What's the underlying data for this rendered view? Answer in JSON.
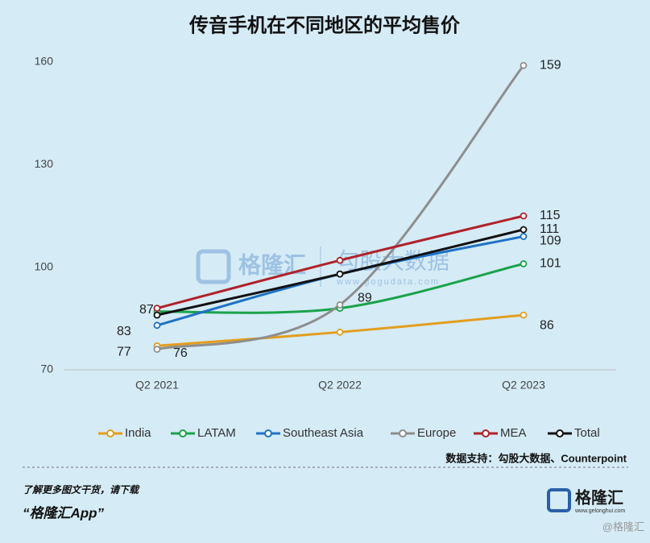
{
  "chart_data": {
    "type": "line",
    "title": "传音手机在不同地区的平均售价",
    "categories": [
      "Q2 2021",
      "Q2 2022",
      "Q2 2023"
    ],
    "series": [
      {
        "name": "India",
        "color": "#e39e1e",
        "values": [
          77,
          81,
          86
        ]
      },
      {
        "name": "LATAM",
        "color": "#1aa34a",
        "values": [
          87,
          88,
          101
        ]
      },
      {
        "name": "Southeast Asia",
        "color": "#1f72c4",
        "values": [
          83,
          98,
          109
        ]
      },
      {
        "name": "Europe",
        "color": "#8e8e8e",
        "values": [
          76,
          89,
          159
        ]
      },
      {
        "name": "MEA",
        "color": "#b0222a",
        "values": [
          88,
          102,
          115
        ]
      },
      {
        "name": "Total",
        "color": "#111111",
        "values": [
          86,
          98,
          111
        ]
      }
    ],
    "ylim": [
      70,
      160
    ],
    "yticks": [
      70,
      100,
      130,
      160
    ],
    "legend": "bottom",
    "source": "数据支持：勾股大数据、Counterpoint"
  },
  "watermark": {
    "brand": "格隆汇",
    "partner": "勾股大数据",
    "url": "www.gogudata.com"
  },
  "footer": {
    "prompt": "了解更多图文干货，请下载",
    "app": "“格隆汇App”",
    "logo": "格隆汇",
    "site": "www.gelonghui.com",
    "handle": "@格隆汇"
  }
}
